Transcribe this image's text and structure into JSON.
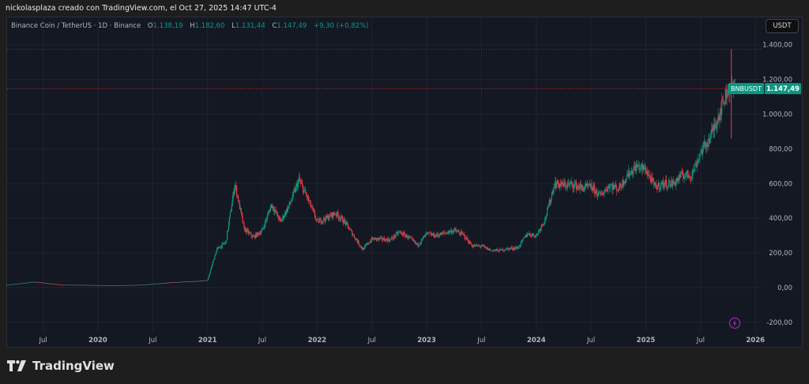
{
  "header": {
    "credit": "nickolasplaza creado con TradingView.com, el Oct 27, 2025 14:47 UTC-4"
  },
  "legend": {
    "symbol": "Binance Coin / TetherUS · 1D · Binance",
    "open_label": "O",
    "open": "1.138,19",
    "high_label": "H",
    "high": "1.182,60",
    "low_label": "L",
    "low": "1.131,44",
    "close_label": "C",
    "close": "1.147,49",
    "change": "+9,30 (+0,82%)"
  },
  "currency_button": "USDT",
  "price_tag": {
    "symbol": "BNBUSDT",
    "price": "1.147,49"
  },
  "footer": {
    "logo_text": "TradingView"
  },
  "colors": {
    "up": "#089981",
    "down": "#f23645",
    "background": "#141823",
    "grid": "#1f2330",
    "price_line": "#f23645",
    "event_icon": "#9c27b0"
  },
  "icons": {
    "event": "lightning-icon",
    "logo": "tradingview-logo-icon"
  },
  "chart_data": {
    "type": "candlestick",
    "title": "",
    "symbol": "BNBUSDT",
    "interval": "1D",
    "yaxis": {
      "ticks": [
        "1.400,00",
        "1.200,00",
        "1.000,00",
        "800,00",
        "600,00",
        "400,00",
        "200,00",
        "0,00",
        "-200,00"
      ],
      "tick_values": [
        1400,
        1200,
        1000,
        800,
        600,
        400,
        200,
        0,
        -200
      ],
      "range": [
        -250,
        1480
      ]
    },
    "xaxis": {
      "ticks": [
        "Jul",
        "2020",
        "Jul",
        "2021",
        "Jul",
        "2022",
        "Jul",
        "2023",
        "Jul",
        "2024",
        "Jul",
        "2025",
        "Jul",
        "2026"
      ],
      "tick_dates": [
        "2019-07",
        "2020-01",
        "2020-07",
        "2021-01",
        "2021-07",
        "2022-01",
        "2022-07",
        "2023-01",
        "2023-07",
        "2024-01",
        "2024-07",
        "2025-01",
        "2025-07",
        "2026-01"
      ],
      "range": [
        "2019-03",
        "2026-03"
      ]
    },
    "grid": true,
    "last_price": 1147.49,
    "all_time_high": 1375,
    "monthly_close": [
      [
        "2019-03",
        15
      ],
      [
        "2019-06",
        33
      ],
      [
        "2019-09",
        16
      ],
      [
        "2019-12",
        14
      ],
      [
        "2020-03",
        12
      ],
      [
        "2020-06",
        16
      ],
      [
        "2020-09",
        29
      ],
      [
        "2020-12",
        38
      ],
      [
        "2021-01",
        42
      ],
      [
        "2021-02",
        220
      ],
      [
        "2021-03",
        260
      ],
      [
        "2021-04",
        600
      ],
      [
        "2021-05",
        340
      ],
      [
        "2021-06",
        290
      ],
      [
        "2021-07",
        330
      ],
      [
        "2021-08",
        480
      ],
      [
        "2021-09",
        380
      ],
      [
        "2021-10",
        480
      ],
      [
        "2021-11",
        620
      ],
      [
        "2021-12",
        510
      ],
      [
        "2022-01",
        380
      ],
      [
        "2022-02",
        400
      ],
      [
        "2022-03",
        430
      ],
      [
        "2022-04",
        380
      ],
      [
        "2022-05",
        300
      ],
      [
        "2022-06",
        220
      ],
      [
        "2022-07",
        280
      ],
      [
        "2022-08",
        280
      ],
      [
        "2022-09",
        275
      ],
      [
        "2022-10",
        320
      ],
      [
        "2022-11",
        290
      ],
      [
        "2022-12",
        245
      ],
      [
        "2023-01",
        310
      ],
      [
        "2023-02",
        300
      ],
      [
        "2023-03",
        315
      ],
      [
        "2023-04",
        330
      ],
      [
        "2023-05",
        305
      ],
      [
        "2023-06",
        240
      ],
      [
        "2023-07",
        240
      ],
      [
        "2023-08",
        215
      ],
      [
        "2023-09",
        215
      ],
      [
        "2023-10",
        225
      ],
      [
        "2023-11",
        230
      ],
      [
        "2023-12",
        310
      ],
      [
        "2024-01",
        300
      ],
      [
        "2024-02",
        400
      ],
      [
        "2024-03",
        600
      ],
      [
        "2024-04",
        590
      ],
      [
        "2024-05",
        595
      ],
      [
        "2024-06",
        575
      ],
      [
        "2024-07",
        580
      ],
      [
        "2024-08",
        530
      ],
      [
        "2024-09",
        590
      ],
      [
        "2024-10",
        570
      ],
      [
        "2024-11",
        650
      ],
      [
        "2024-12",
        700
      ],
      [
        "2025-01",
        680
      ],
      [
        "2025-02",
        580
      ],
      [
        "2025-03",
        600
      ],
      [
        "2025-04",
        600
      ],
      [
        "2025-05",
        650
      ],
      [
        "2025-06",
        650
      ],
      [
        "2025-07",
        780
      ],
      [
        "2025-08",
        860
      ],
      [
        "2025-09",
        1000
      ],
      [
        "2025-10",
        1147.49
      ]
    ]
  }
}
